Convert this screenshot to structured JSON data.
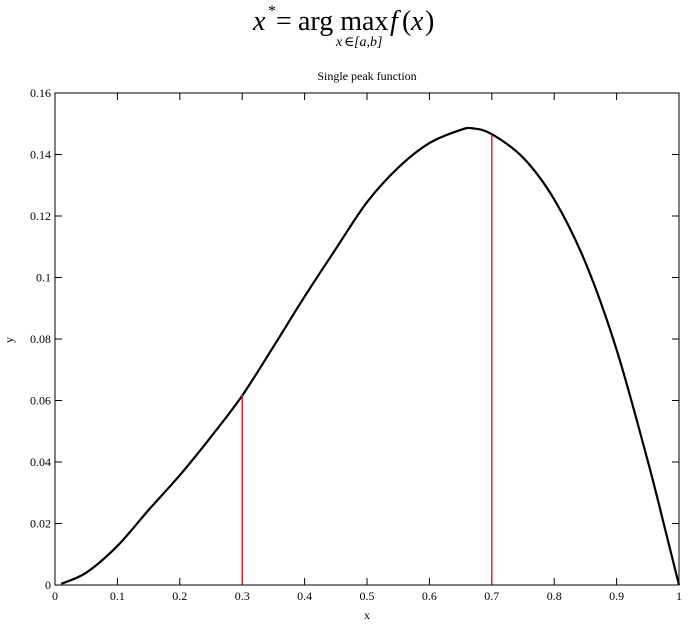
{
  "formula": {
    "lhs": "x",
    "star": "*",
    "equals": "=",
    "op": "arg max",
    "subscript_var": "x",
    "subscript_in": "∈",
    "subscript_set": "[a,b]",
    "fn": "f",
    "paren_open": "(",
    "arg": "x",
    "paren_close": ")"
  },
  "chart_data": {
    "type": "line",
    "title": "Single peak function",
    "xlabel": "x",
    "ylabel": "y",
    "xlim": [
      0,
      1
    ],
    "ylim": [
      0,
      0.16
    ],
    "x_ticks": [
      0,
      0.1,
      0.2,
      0.3,
      0.4,
      0.5,
      0.6,
      0.7,
      0.8,
      0.9,
      1
    ],
    "x_tick_labels": [
      "0",
      "0.1",
      "0.2",
      "0.3",
      "0.4",
      "0.5",
      "0.6",
      "0.7",
      "0.8",
      "0.9",
      "1"
    ],
    "y_ticks": [
      0,
      0.02,
      0.04,
      0.06,
      0.08,
      0.1,
      0.12,
      0.14,
      0.16
    ],
    "y_tick_labels": [
      "0",
      "0.02",
      "0.04",
      "0.06",
      "0.08",
      "0.1",
      "0.12",
      "0.14",
      "0.16"
    ],
    "grid": false,
    "series": [
      {
        "color": "#000000",
        "x": [
          0.01,
          0.05,
          0.1,
          0.15,
          0.2,
          0.25,
          0.3,
          0.35,
          0.4,
          0.45,
          0.5,
          0.55,
          0.6,
          0.65,
          0.67,
          0.7,
          0.75,
          0.8,
          0.85,
          0.9,
          0.95,
          0.98,
          1.0
        ],
        "y": [
          0.0004,
          0.004,
          0.0127,
          0.0244,
          0.0357,
          0.0482,
          0.0616,
          0.0775,
          0.0938,
          0.1093,
          0.1245,
          0.1357,
          0.1437,
          0.148,
          0.1485,
          0.1466,
          0.139,
          0.1254,
          0.1049,
          0.0765,
          0.0403,
          0.0163,
          0.0
        ]
      }
    ],
    "vlines": [
      {
        "x": 0.3,
        "y_top": 0.0618,
        "color": "#e8141e"
      },
      {
        "x": 0.7,
        "y_top": 0.1466,
        "color": "#e8141e"
      }
    ]
  }
}
